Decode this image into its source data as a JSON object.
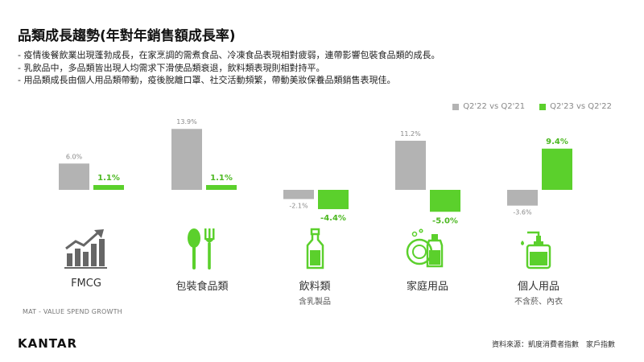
{
  "header": {
    "title": "品類成長趨勢(年對年銷售額成長率)"
  },
  "bullets": [
    "- 疫情後餐飲業出現蓬勃成長，在家烹調的需煮食品、冷凍食品表現相對疲弱，連帶影響包裝食品類的成長。",
    "- 乳飲品中，多品類皆出現人均需求下滑使品類衰退，飲料類表現則相對持平。",
    "- 用品類成長由個人用品類帶動，疫後脫離口罩、社交活動頻繁，帶動美妝保養品類銷售表現佳。"
  ],
  "chart_data": {
    "type": "bar",
    "categories": [
      "FMCG",
      "包裝食品類",
      "飲料類",
      "家庭用品",
      "個人用品"
    ],
    "category_sublabels": [
      "",
      "",
      "含乳製品",
      "",
      "不含菸、內衣"
    ],
    "series": [
      {
        "name": "Q2'22 vs Q2'21",
        "values": [
          6.0,
          13.9,
          -2.1,
          11.2,
          -3.6
        ],
        "labels": [
          "6.0%",
          "13.9%",
          "-2.1%",
          "11.2%",
          "-3.6%"
        ]
      },
      {
        "name": "Q2'23 vs Q2'22",
        "values": [
          1.1,
          1.1,
          -4.4,
          -5.0,
          9.4
        ],
        "labels": [
          "1.1%",
          "1.1%",
          "-4.4%",
          "-5.0%",
          "9.4%"
        ]
      }
    ],
    "ylim": [
      -5.5,
      14.5
    ],
    "legend_position": "top-right",
    "grid": false,
    "colors": {
      "series1": "#b3b3b3",
      "series2": "#5bd02c",
      "label1": "#888888",
      "label2": "#4cb821"
    }
  },
  "icons": [
    "trend-chart-icon",
    "spoon-fork-icon",
    "bottle-icon",
    "dish-detergent-icon",
    "lotion-pump-icon"
  ],
  "footer": {
    "measure_note": "MAT - VALUE SPEND GROWTH",
    "brand": "KANTAR",
    "source": "資料來源：凱度消費者指數　家戶指數"
  }
}
